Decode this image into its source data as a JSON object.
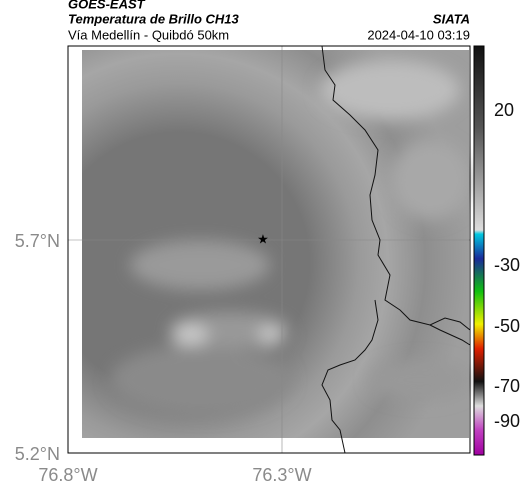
{
  "header": {
    "source": "GOES-EAST",
    "product": "Temperatura de Brillo CH13",
    "agency": "SIATA",
    "region": "Vía Medellín - Quibdó 50km",
    "timestamp": "2024-04-10 03:19"
  },
  "map": {
    "lat_labels": [
      "5.7°N",
      "5.2°N"
    ],
    "lon_labels": [
      "76.8°W",
      "76.3°W"
    ]
  },
  "colorbar": {
    "ticks": [
      20,
      -30,
      -50,
      -70,
      -90
    ]
  }
}
